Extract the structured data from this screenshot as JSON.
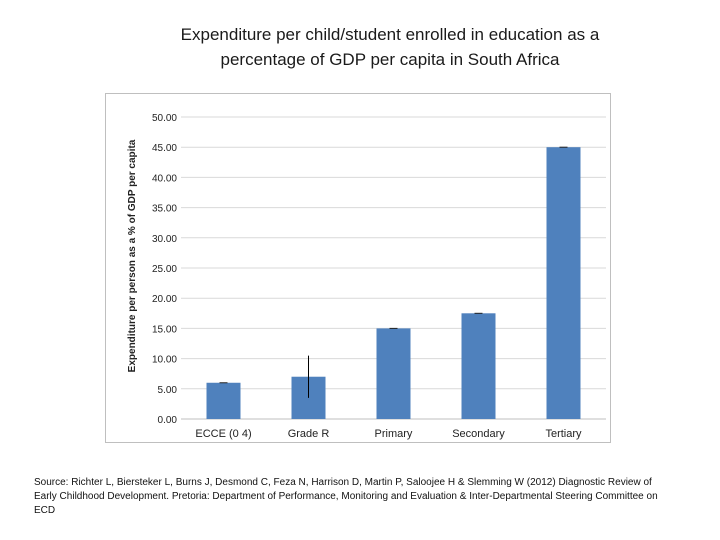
{
  "title_line1": "Expenditure per child/student enrolled in education as a",
  "title_line2": "percentage of GDP per capita in South Africa",
  "source": "Source: Richter L, Biersteker L, Burns J, Desmond C, Feza N, Harrison D, Martin P, Saloojee H & Slemming W (2012) Diagnostic Review of Early Childhood Development. Pretoria: Department of Performance, Monitoring and Evaluation & Inter-Departmental Steering Committee on ECD",
  "chart_data": {
    "type": "bar",
    "title": "",
    "xlabel": "",
    "ylabel": "Expenditure per person as a % of GDP per capita",
    "categories": [
      "ECCE (0 4)",
      "Grade R",
      "Primary",
      "Secondary",
      "Tertiary"
    ],
    "values": [
      6.0,
      7.0,
      15.0,
      17.5,
      45.0
    ],
    "error_low": [
      0,
      3.5,
      0,
      0,
      0
    ],
    "error_high": [
      0,
      10.5,
      0,
      0,
      0
    ],
    "ylim": [
      0,
      50
    ],
    "yticks": [
      "0.00",
      "5.00",
      "10.00",
      "15.00",
      "20.00",
      "25.00",
      "30.00",
      "35.00",
      "40.00",
      "45.00",
      "50.00"
    ],
    "grid": true,
    "legend": "none",
    "bar_color": "#4f81bd",
    "grid_color": "#d9d9d9"
  }
}
